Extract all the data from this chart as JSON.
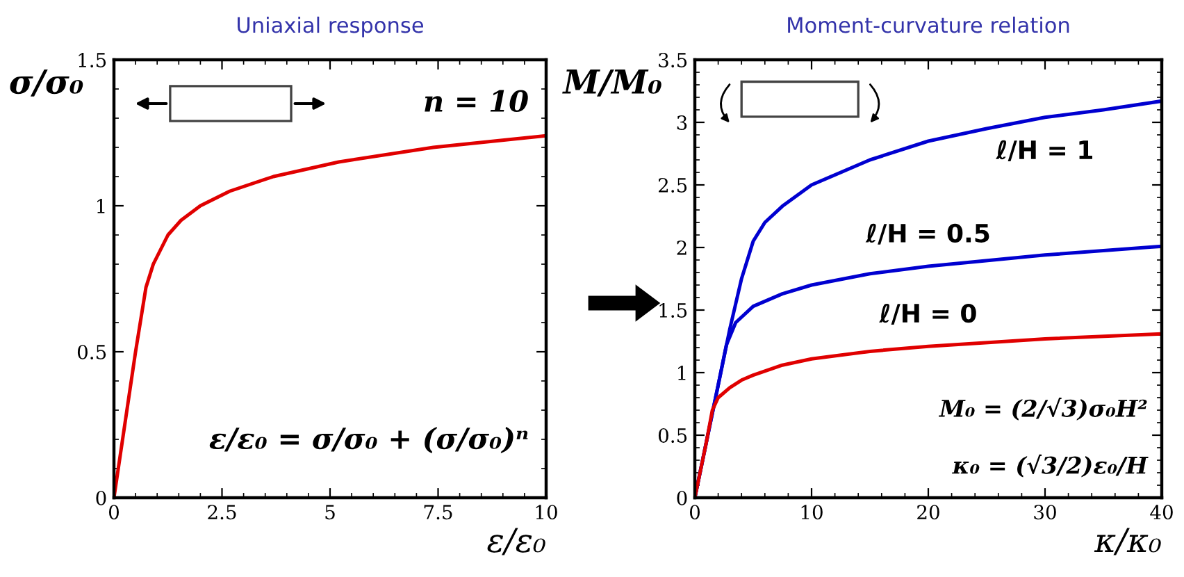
{
  "chart_data": [
    {
      "type": "line",
      "title": "Uniaxial response",
      "xlabel": "ε/ε₀",
      "ylabel": "σ/σ₀",
      "xlim": [
        0,
        10
      ],
      "ylim": [
        0,
        1.5
      ],
      "xticks": [
        0,
        2.5,
        5,
        7.5,
        10
      ],
      "yticks": [
        0,
        0.5,
        1,
        1.5
      ],
      "grid": false,
      "legend": false,
      "annotations": [
        "n = 10",
        "ε/ε₀ = σ/σ₀ + (σ/σ₀)ⁿ"
      ],
      "series": [
        {
          "color": "#e00000",
          "x": [
            0,
            0.5,
            0.74,
            0.91,
            1.25,
            1.55,
            2.0,
            2.68,
            3.69,
            5.2,
            7.39,
            10
          ],
          "values": [
            0,
            0.5,
            0.72,
            0.8,
            0.9,
            0.95,
            1.0,
            1.05,
            1.1,
            1.15,
            1.2,
            1.24
          ]
        }
      ]
    },
    {
      "type": "line",
      "title": "Moment-curvature relation",
      "xlabel": "κ/κ₀",
      "ylabel": "M/M₀",
      "xlim": [
        0,
        40
      ],
      "ylim": [
        0,
        3.5
      ],
      "xticks": [
        0,
        10,
        20,
        30,
        40
      ],
      "yticks": [
        0,
        0.5,
        1,
        1.5,
        2,
        2.5,
        3,
        3.5
      ],
      "grid": false,
      "legend": false,
      "annotations": [
        "M₀ = (2/√3)σ₀H²",
        "κ₀ = (√3/2)ε₀/H"
      ],
      "series": [
        {
          "name": "ℓ/H = 1",
          "color": "#0000d0",
          "x": [
            0,
            1,
            2,
            3,
            4,
            5,
            6,
            7.5,
            10,
            15,
            20,
            25,
            30,
            35,
            40
          ],
          "values": [
            0,
            0.45,
            0.9,
            1.35,
            1.75,
            2.05,
            2.2,
            2.33,
            2.5,
            2.7,
            2.85,
            2.95,
            3.04,
            3.1,
            3.17
          ]
        },
        {
          "name": "ℓ/H = 0.5",
          "color": "#0000d0",
          "x": [
            0,
            1,
            2,
            2.7,
            3.5,
            5,
            7.5,
            10,
            15,
            20,
            30,
            40
          ],
          "values": [
            0,
            0.45,
            0.9,
            1.22,
            1.4,
            1.53,
            1.63,
            1.7,
            1.79,
            1.85,
            1.94,
            2.01
          ]
        },
        {
          "name": "ℓ/H = 0",
          "color": "#e00000",
          "x": [
            0,
            1,
            1.5,
            2,
            3,
            4,
            5,
            7.5,
            10,
            15,
            20,
            30,
            40
          ],
          "values": [
            0,
            0.45,
            0.7,
            0.8,
            0.88,
            0.94,
            0.98,
            1.06,
            1.11,
            1.17,
            1.21,
            1.27,
            1.31
          ]
        }
      ]
    }
  ]
}
